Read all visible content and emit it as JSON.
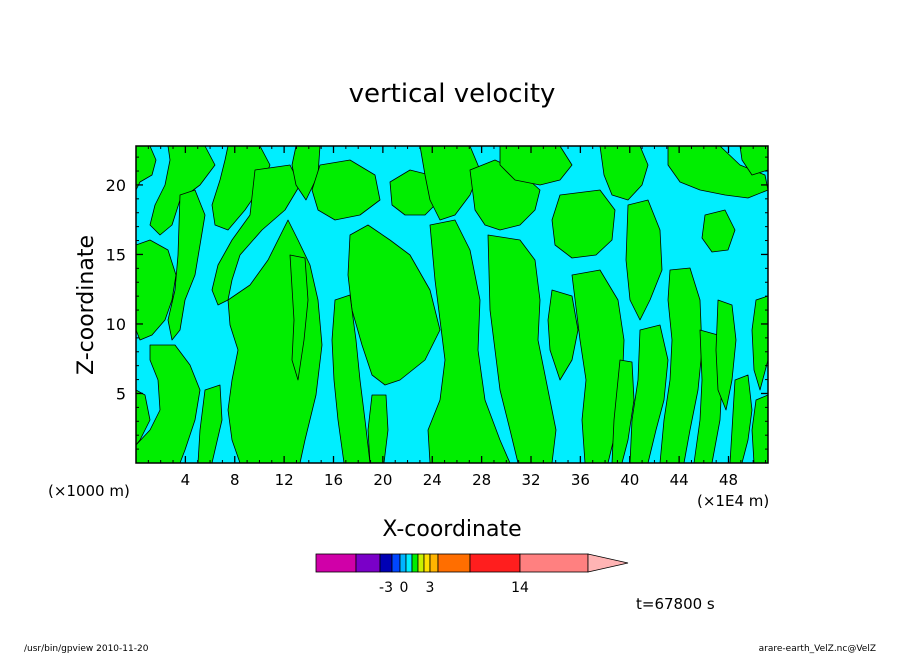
{
  "chart_data": {
    "type": "contour",
    "title": "vertical velocity",
    "xlabel": "X-coordinate",
    "ylabel": "Z-coordinate",
    "x_unit_left": "(×1000 m)",
    "x_unit_right": "(×1E4 m)",
    "x_ticks": [
      "4",
      "8",
      "12",
      "16",
      "20",
      "24",
      "28",
      "32",
      "36",
      "40",
      "44",
      "48"
    ],
    "y_ticks": [
      "5",
      "10",
      "15",
      "20"
    ],
    "xlim": [
      0,
      51.2
    ],
    "ylim": [
      0,
      22.8
    ],
    "grid": false,
    "fill_colors": {
      "positive": "#00ee00",
      "negative": "#00eeff"
    },
    "colorbar": {
      "labels": [
        "-3",
        "0",
        "3",
        "14"
      ],
      "colors": [
        "#d000a8",
        "#7a00c8",
        "#0000b4",
        "#0046ff",
        "#00b4ff",
        "#00eeff",
        "#00ee00",
        "#c8f000",
        "#ffe000",
        "#ffb400",
        "#ff6e00",
        "#ff1e1e",
        "#ff8080",
        "#ffb4b4"
      ]
    },
    "time_label": "t=67800 s"
  },
  "footer": {
    "left": "/usr/bin/gpview 2010-11-20",
    "right": "arare-earth_VelZ.nc@VelZ"
  }
}
